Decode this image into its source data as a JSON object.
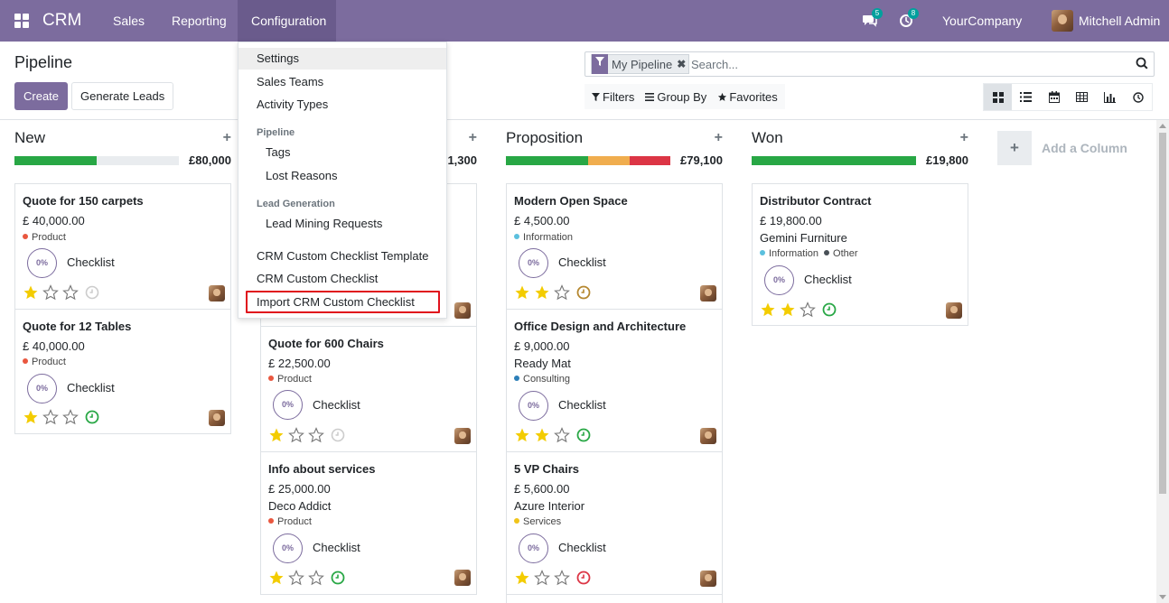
{
  "topbar": {
    "app_name": "CRM",
    "menus": [
      "Sales",
      "Reporting",
      "Configuration"
    ],
    "active_menu": "Configuration",
    "messages_badge": "5",
    "activities_badge": "8",
    "company": "YourCompany",
    "user": "Mitchell Admin",
    "color": "#7c6c9e"
  },
  "control": {
    "title": "Pipeline",
    "create_label": "Create",
    "generate_label": "Generate Leads",
    "facet_label": "My Pipeline",
    "search_placeholder": "Search...",
    "filters_label": "Filters",
    "groupby_label": "Group By",
    "favorites_label": "Favorites",
    "views": [
      "kanban-icon",
      "list-icon",
      "calendar-icon",
      "pivot-icon",
      "graph-icon",
      "activity-icon"
    ],
    "active_view": "kanban-icon"
  },
  "dropdown": {
    "items": [
      "Settings",
      "Sales Teams",
      "Activity Types"
    ],
    "pipeline_header": "Pipeline",
    "pipeline_items": [
      "Tags",
      "Lost Reasons"
    ],
    "leadgen_header": "Lead Generation",
    "leadgen_items": [
      "Lead Mining Requests"
    ],
    "checklist_items": [
      "CRM Custom Checklist Template",
      "CRM Custom Checklist",
      "Import CRM Custom Checklist"
    ],
    "highlighted": "Settings",
    "marked": "Import CRM Custom Checklist"
  },
  "columns": [
    {
      "name": "New",
      "sum": "£80,000",
      "progress": {
        "green": 0.5
      }
    },
    {
      "name": "",
      "sum": "1,300",
      "progress": {}
    },
    {
      "name": "Proposition",
      "sum": "£79,100",
      "progress": {
        "green": 0.5,
        "orange": 0.25,
        "red": 0.25
      }
    },
    {
      "name": "Won",
      "sum": "£19,800",
      "progress": {
        "green": 1.0
      }
    }
  ],
  "cards": {
    "c1": {
      "name": "Quote for 150 carpets",
      "amount": "£ 40,000.00",
      "tags": [
        "Product"
      ],
      "stars": 1,
      "activity": "none"
    },
    "c2": {
      "name": "Quote for 12 Tables",
      "amount": "£ 40,000.00",
      "tags": [
        "Product"
      ],
      "stars": 1,
      "activity": "green"
    },
    "c3": {
      "name": "Quote for 600 Chairs",
      "amount": "£ 22,500.00",
      "tags": [
        "Product"
      ],
      "stars": 1,
      "activity": "none"
    },
    "c4": {
      "name": "Info about services",
      "amount": "£ 25,000.00",
      "customer": "Deco Addict",
      "tags": [
        "Product"
      ],
      "stars": 1,
      "activity": "green"
    },
    "c5": {
      "name": "Modern Open Space",
      "amount": "£ 4,500.00",
      "tags": [
        "Information"
      ],
      "stars": 2,
      "activity": "orange"
    },
    "c6": {
      "name": "Office Design and Architecture",
      "amount": "£ 9,000.00",
      "customer": "Ready Mat",
      "tags": [
        "Consulting"
      ],
      "stars": 2,
      "activity": "green"
    },
    "c7": {
      "name": "5 VP Chairs",
      "amount": "£ 5,600.00",
      "customer": "Azure Interior",
      "tags": [
        "Services"
      ],
      "stars": 1,
      "activity": "red"
    },
    "c8": {
      "name": "Distributor Contract",
      "amount": "£ 19,800.00",
      "customer": "Gemini Furniture",
      "tags": [
        "Information",
        "Other"
      ],
      "stars": 2,
      "activity": "green"
    }
  },
  "checklist": {
    "percent": "0%",
    "label": "Checklist"
  },
  "add_column_label": "Add a Column",
  "tag_colors": {
    "Product": "#e9573f",
    "Information": "#5bc0de",
    "Consulting": "#2c7fb8",
    "Services": "#f0c419",
    "Other": "#495057"
  }
}
